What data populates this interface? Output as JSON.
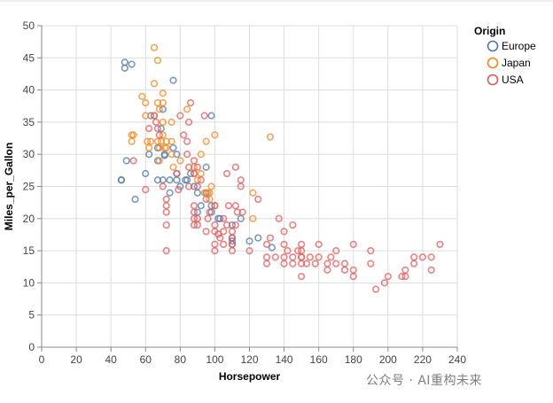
{
  "chart_data": {
    "type": "scatter",
    "title": "",
    "xlabel": "Horsepower",
    "ylabel": "Miles_per_Gallon",
    "xlim": [
      0,
      240
    ],
    "ylim": [
      0,
      50
    ],
    "x_ticks": [
      0,
      20,
      40,
      60,
      80,
      100,
      120,
      140,
      160,
      180,
      200,
      220,
      240
    ],
    "y_ticks": [
      0,
      5,
      10,
      15,
      20,
      25,
      30,
      35,
      40,
      45,
      50
    ],
    "grid": true,
    "legend": {
      "title": "Origin",
      "placement": "top-right",
      "entries": [
        "Europe",
        "Japan",
        "USA"
      ]
    },
    "series": [
      {
        "name": "Europe",
        "color": "#4c78a8",
        "points": [
          [
            46,
            26
          ],
          [
            46,
            26
          ],
          [
            48,
            43.4
          ],
          [
            48,
            44.3
          ],
          [
            49,
            29
          ],
          [
            52,
            44
          ],
          [
            54,
            23
          ],
          [
            60,
            27
          ],
          [
            62,
            30
          ],
          [
            63,
            36
          ],
          [
            67,
            31
          ],
          [
            67,
            26
          ],
          [
            67,
            29
          ],
          [
            69,
            34
          ],
          [
            70,
            26
          ],
          [
            70,
            37
          ],
          [
            71,
            30
          ],
          [
            71,
            29.8
          ],
          [
            74,
            24
          ],
          [
            74,
            26
          ],
          [
            76,
            31
          ],
          [
            76,
            41.5
          ],
          [
            78,
            27
          ],
          [
            78,
            30
          ],
          [
            78,
            26
          ],
          [
            80,
            25
          ],
          [
            83,
            26
          ],
          [
            84,
            26
          ],
          [
            86,
            27
          ],
          [
            88,
            25
          ],
          [
            90,
            24
          ],
          [
            90,
            21
          ],
          [
            92,
            22
          ],
          [
            95,
            28
          ],
          [
            95,
            24
          ],
          [
            98,
            21
          ],
          [
            98,
            22
          ],
          [
            102,
            20
          ],
          [
            103,
            20
          ],
          [
            110,
            16
          ],
          [
            110,
            17
          ],
          [
            110,
            19
          ],
          [
            110,
            16.5
          ],
          [
            115,
            20
          ],
          [
            120,
            16.5
          ],
          [
            125,
            17
          ],
          [
            133,
            15.5
          ],
          [
            98,
            36
          ]
        ]
      },
      {
        "name": "Japan",
        "color": "#f58518",
        "points": [
          [
            52,
            32
          ],
          [
            52,
            33
          ],
          [
            53,
            33
          ],
          [
            58,
            39
          ],
          [
            60,
            38
          ],
          [
            60,
            36
          ],
          [
            61,
            32
          ],
          [
            62,
            31
          ],
          [
            63,
            32
          ],
          [
            65,
            46.6
          ],
          [
            65,
            41
          ],
          [
            65,
            36
          ],
          [
            67,
            38
          ],
          [
            67,
            32
          ],
          [
            68,
            37
          ],
          [
            68,
            31
          ],
          [
            68,
            29
          ],
          [
            69,
            32
          ],
          [
            70,
            38
          ],
          [
            70,
            39.5
          ],
          [
            70,
            33
          ],
          [
            70,
            35
          ],
          [
            71,
            31
          ],
          [
            72,
            31
          ],
          [
            72,
            32
          ],
          [
            75,
            35
          ],
          [
            75,
            32
          ],
          [
            75,
            30
          ],
          [
            76,
            28
          ],
          [
            80,
            29
          ],
          [
            84,
            37
          ],
          [
            88,
            27
          ],
          [
            88,
            28
          ],
          [
            90,
            26
          ],
          [
            92,
            30
          ],
          [
            92,
            27
          ],
          [
            94,
            24
          ],
          [
            95,
            32
          ],
          [
            96,
            24
          ],
          [
            97,
            24
          ],
          [
            97,
            23
          ],
          [
            98,
            25
          ],
          [
            100,
            33
          ],
          [
            100,
            22
          ],
          [
            122,
            24
          ],
          [
            122,
            20
          ],
          [
            132,
            32.7
          ],
          [
            67,
            44.6
          ]
        ]
      },
      {
        "name": "USA",
        "color": "#e45756",
        "points": [
          [
            53,
            29
          ],
          [
            60,
            24.5
          ],
          [
            62,
            34
          ],
          [
            65,
            36
          ],
          [
            66,
            35
          ],
          [
            67,
            34
          ],
          [
            68,
            33
          ],
          [
            70,
            25
          ],
          [
            72,
            22
          ],
          [
            72,
            23
          ],
          [
            72,
            15
          ],
          [
            72,
            21
          ],
          [
            72,
            19
          ],
          [
            78,
            27
          ],
          [
            79,
            24.5
          ],
          [
            80,
            36
          ],
          [
            82,
            33
          ],
          [
            84,
            30
          ],
          [
            84,
            32
          ],
          [
            85,
            35
          ],
          [
            85,
            28
          ],
          [
            85,
            25
          ],
          [
            86,
            38
          ],
          [
            88,
            29
          ],
          [
            88,
            19
          ],
          [
            88,
            20
          ],
          [
            88,
            27
          ],
          [
            88,
            21
          ],
          [
            88,
            22
          ],
          [
            90,
            28
          ],
          [
            90,
            20
          ],
          [
            90,
            25
          ],
          [
            90,
            19
          ],
          [
            92,
            26
          ],
          [
            94,
            36
          ],
          [
            95,
            18
          ],
          [
            96,
            20
          ],
          [
            97,
            21
          ],
          [
            100,
            18
          ],
          [
            100,
            19
          ],
          [
            100,
            15
          ],
          [
            100,
            16
          ],
          [
            100,
            22
          ],
          [
            102,
            17.6
          ],
          [
            103,
            17
          ],
          [
            105,
            16
          ],
          [
            105,
            18
          ],
          [
            105,
            20
          ],
          [
            107,
            19
          ],
          [
            108,
            22
          ],
          [
            110,
            17
          ],
          [
            110,
            18
          ],
          [
            110,
            16
          ],
          [
            110,
            15
          ],
          [
            112,
            22
          ],
          [
            112,
            19
          ],
          [
            113,
            21
          ],
          [
            115,
            25
          ],
          [
            116,
            21
          ],
          [
            120,
            15
          ],
          [
            125,
            23
          ],
          [
            130,
            14
          ],
          [
            130,
            13
          ],
          [
            130,
            16
          ],
          [
            135,
            14
          ],
          [
            137,
            20
          ],
          [
            140,
            13
          ],
          [
            140,
            14
          ],
          [
            140,
            16
          ],
          [
            140,
            18
          ],
          [
            142,
            15
          ],
          [
            145,
            14
          ],
          [
            145,
            13
          ],
          [
            148,
            15
          ],
          [
            150,
            13
          ],
          [
            150,
            14
          ],
          [
            150,
            11
          ],
          [
            150,
            16
          ],
          [
            150,
            15
          ],
          [
            150,
            14
          ],
          [
            153,
            13
          ],
          [
            155,
            14
          ],
          [
            158,
            13
          ],
          [
            160,
            14
          ],
          [
            165,
            13
          ],
          [
            165,
            12
          ],
          [
            167,
            14
          ],
          [
            170,
            13
          ],
          [
            175,
            13
          ],
          [
            175,
            12
          ],
          [
            180,
            12
          ],
          [
            180,
            16
          ],
          [
            180,
            11
          ],
          [
            190,
            13
          ],
          [
            193,
            9
          ],
          [
            198,
            10
          ],
          [
            200,
            11
          ],
          [
            208,
            11
          ],
          [
            210,
            12
          ],
          [
            215,
            13
          ],
          [
            215,
            14
          ],
          [
            220,
            14
          ],
          [
            225,
            12
          ],
          [
            225,
            14
          ],
          [
            230,
            16
          ],
          [
            95,
            23
          ],
          [
            107,
            27
          ],
          [
            112,
            28
          ],
          [
            115,
            26
          ],
          [
            132,
            17
          ],
          [
            145,
            19
          ],
          [
            160,
            16
          ],
          [
            170,
            15
          ],
          [
            190,
            15
          ],
          [
            210,
            11
          ]
        ]
      }
    ]
  },
  "watermark": "公众号 · AI重构未来"
}
